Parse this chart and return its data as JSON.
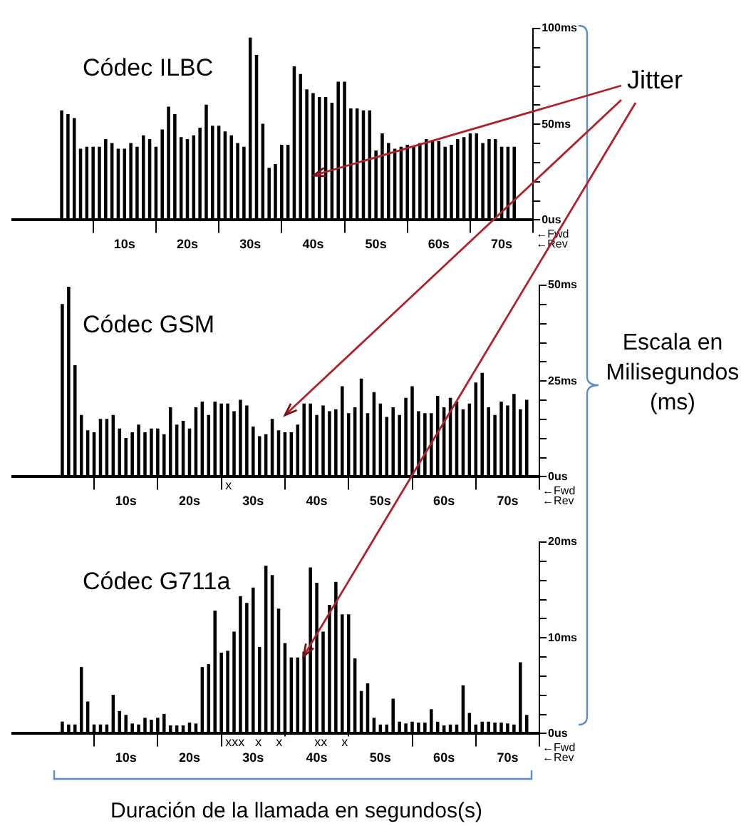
{
  "chart_data": [
    {
      "type": "bar",
      "title": "Códec ILBC",
      "color": "#000000",
      "xlim": [
        -8,
        75
      ],
      "ylim": [
        0,
        100
      ],
      "grid": false,
      "legend": false,
      "xticks": [
        {
          "value": 10,
          "label": "10s"
        },
        {
          "value": 20,
          "label": "20s"
        },
        {
          "value": 30,
          "label": "30s"
        },
        {
          "value": 40,
          "label": "40s"
        },
        {
          "value": 50,
          "label": "50s"
        },
        {
          "value": 60,
          "label": "60s"
        },
        {
          "value": 70,
          "label": "70s"
        }
      ],
      "yticks": [
        {
          "value": 0,
          "label": "0us"
        },
        {
          "value": 10,
          "label": null
        },
        {
          "value": 20,
          "label": null
        },
        {
          "value": 30,
          "label": null
        },
        {
          "value": 40,
          "label": null
        },
        {
          "value": 50,
          "label": "50ms"
        },
        {
          "value": 60,
          "label": null
        },
        {
          "value": 70,
          "label": null
        },
        {
          "value": 80,
          "label": null
        },
        {
          "value": 90,
          "label": null
        },
        {
          "value": 100,
          "label": "100ms"
        }
      ],
      "x": [
        0,
        1,
        2,
        3,
        4,
        5,
        6,
        7,
        8,
        9,
        10,
        11,
        12,
        13,
        14,
        15,
        16,
        17,
        18,
        19,
        20,
        21,
        22,
        23,
        24,
        25,
        26,
        27,
        28,
        29,
        30,
        31,
        32,
        33,
        34,
        35,
        36,
        37,
        38,
        39,
        40,
        41,
        42,
        43,
        44,
        45,
        46,
        47,
        48,
        49,
        50,
        51,
        52,
        53,
        54,
        55,
        56,
        57,
        58,
        59,
        60,
        61,
        62,
        63,
        64,
        65,
        66,
        67,
        68,
        69,
        70,
        71,
        72
      ],
      "values": [
        57,
        55,
        53,
        37,
        38,
        38,
        38,
        42,
        40,
        37,
        37,
        40,
        38,
        44,
        42,
        38,
        47,
        59,
        55,
        43,
        42,
        44,
        48,
        60,
        49,
        49,
        46,
        44,
        40,
        38,
        95,
        86,
        50,
        27,
        29,
        39,
        39,
        80,
        76,
        68,
        66,
        64,
        64,
        61,
        72,
        72,
        58,
        58,
        57,
        57,
        36,
        45,
        40,
        37,
        38,
        39,
        38,
        40,
        42,
        41,
        41,
        38,
        39,
        42,
        43,
        45,
        45,
        40,
        42,
        42,
        38,
        38,
        38
      ],
      "annotations": [
        "←Fwd",
        "←Rev",
        "Jitter",
        "Escala en Milisegundos (ms)"
      ]
    },
    {
      "type": "bar",
      "title": "Códec GSM",
      "color": "#000000",
      "xlim": [
        -8,
        75
      ],
      "ylim": [
        0,
        50
      ],
      "grid": false,
      "legend": false,
      "xticks": [
        {
          "value": 10,
          "label": "10s"
        },
        {
          "value": 20,
          "label": "20s"
        },
        {
          "value": 30,
          "label": "30s"
        },
        {
          "value": 40,
          "label": "40s"
        },
        {
          "value": 50,
          "label": "50s"
        },
        {
          "value": 60,
          "label": "60s"
        },
        {
          "value": 70,
          "label": "70s"
        }
      ],
      "yticks": [
        {
          "value": 0,
          "label": "0us"
        },
        {
          "value": 5,
          "label": null
        },
        {
          "value": 10,
          "label": null
        },
        {
          "value": 15,
          "label": null
        },
        {
          "value": 20,
          "label": null
        },
        {
          "value": 25,
          "label": "25ms"
        },
        {
          "value": 30,
          "label": null
        },
        {
          "value": 35,
          "label": null
        },
        {
          "value": 40,
          "label": null
        },
        {
          "value": 45,
          "label": null
        },
        {
          "value": 50,
          "label": "50ms"
        }
      ],
      "x": [
        0,
        1,
        2,
        3,
        4,
        5,
        6,
        7,
        8,
        9,
        10,
        11,
        12,
        13,
        14,
        15,
        16,
        17,
        18,
        19,
        20,
        21,
        22,
        23,
        24,
        25,
        26,
        27,
        28,
        29,
        30,
        31,
        32,
        33,
        34,
        35,
        36,
        37,
        38,
        39,
        40,
        41,
        42,
        43,
        44,
        45,
        46,
        47,
        48,
        49,
        50,
        51,
        52,
        53,
        54,
        55,
        56,
        57,
        58,
        59,
        60,
        61,
        62,
        63,
        64,
        65,
        66,
        67,
        68,
        69,
        70,
        71,
        72,
        73
      ],
      "values": [
        45,
        49.5,
        29,
        16,
        12,
        11.5,
        15,
        15,
        16,
        12.5,
        10,
        11.5,
        13.5,
        11.5,
        12.5,
        12.5,
        11,
        18,
        13.5,
        14.5,
        12.5,
        18,
        19.5,
        16,
        19.5,
        19,
        19,
        17,
        20,
        18.5,
        13,
        10.5,
        11,
        15,
        12,
        11.5,
        11.5,
        13.5,
        19,
        19,
        16,
        18.5,
        17,
        17.5,
        23.5,
        16.5,
        18,
        25.5,
        16.5,
        22,
        19,
        15.5,
        18,
        16,
        20.5,
        23.5,
        17,
        16.5,
        16.5,
        21,
        18,
        20.5,
        19.5,
        17.5,
        19,
        24.5,
        27,
        18,
        16,
        19.5,
        18.5,
        21.5,
        17.5,
        20
      ],
      "annotations": [
        "←Fwd",
        "←Rev",
        "x"
      ]
    },
    {
      "type": "bar",
      "title": "Códec G711a",
      "xlabel": "Duración de la llamada en segundos(s)",
      "color": "#000000",
      "xlim": [
        -8,
        75
      ],
      "ylim": [
        0,
        20
      ],
      "grid": false,
      "legend": false,
      "xticks": [
        {
          "value": 10,
          "label": "10s"
        },
        {
          "value": 20,
          "label": "20s"
        },
        {
          "value": 30,
          "label": "30s"
        },
        {
          "value": 40,
          "label": "40s"
        },
        {
          "value": 50,
          "label": "50s"
        },
        {
          "value": 60,
          "label": "60s"
        },
        {
          "value": 70,
          "label": "70s"
        }
      ],
      "yticks": [
        {
          "value": 0,
          "label": "0us"
        },
        {
          "value": 2,
          "label": null
        },
        {
          "value": 4,
          "label": null
        },
        {
          "value": 6,
          "label": null
        },
        {
          "value": 8,
          "label": null
        },
        {
          "value": 10,
          "label": "10ms"
        },
        {
          "value": 12,
          "label": null
        },
        {
          "value": 14,
          "label": null
        },
        {
          "value": 16,
          "label": null
        },
        {
          "value": 18,
          "label": null
        },
        {
          "value": 20,
          "label": "20ms"
        }
      ],
      "x": [
        0,
        1,
        2,
        3,
        4,
        5,
        6,
        7,
        8,
        9,
        10,
        11,
        12,
        13,
        14,
        15,
        16,
        17,
        18,
        19,
        20,
        21,
        22,
        23,
        24,
        25,
        26,
        27,
        28,
        29,
        30,
        31,
        32,
        33,
        34,
        35,
        36,
        37,
        38,
        39,
        40,
        41,
        42,
        43,
        44,
        45,
        46,
        47,
        48,
        49,
        50,
        51,
        52,
        53,
        54,
        55,
        56,
        57,
        58,
        59,
        60,
        61,
        62,
        63,
        64,
        65,
        66,
        67,
        68,
        69,
        70,
        71,
        72,
        73
      ],
      "values": [
        1.2,
        0.9,
        0.9,
        6.9,
        3.3,
        0.9,
        0.9,
        0.9,
        4,
        2.3,
        1.9,
        1,
        0.9,
        1.6,
        1.4,
        1.6,
        2,
        0.8,
        0.8,
        0.8,
        1.1,
        1,
        6.9,
        7.2,
        12.8,
        8.4,
        8.6,
        10.6,
        14.3,
        13.6,
        15.2,
        9,
        17.5,
        16.5,
        13,
        9.4,
        7.9,
        7.9,
        8.5,
        17.3,
        15.7,
        10.6,
        13.4,
        15.8,
        12.4,
        12.4,
        7.8,
        4.4,
        5.2,
        1.6,
        0.9,
        0.9,
        3.6,
        1.2,
        1,
        1.2,
        1.1,
        1.1,
        2.5,
        1.2,
        0.8,
        0.9,
        0.9,
        5,
        2.1,
        0.9,
        1.2,
        1.2,
        1.1,
        1.1,
        1,
        0.9,
        7.4,
        1.9
      ],
      "annotations": [
        "←Fwd",
        "←Rev",
        "xxx   x    x         xx    x"
      ]
    }
  ]
}
